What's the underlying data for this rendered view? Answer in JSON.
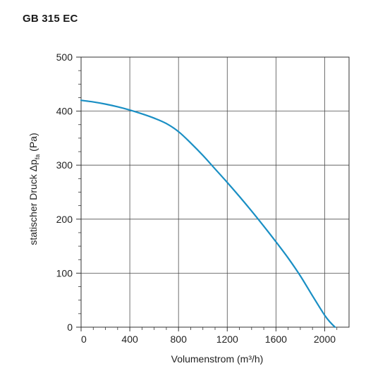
{
  "chart_data": {
    "type": "line",
    "title": "GB 315 EC",
    "xlabel": "Volumenstrom (m³/h)",
    "ylabel": {
      "text": "statischer Druck Δp",
      "subscript": "fa",
      "unit": " (Pa)"
    },
    "xlim": [
      0,
      2200
    ],
    "ylim": [
      0,
      500
    ],
    "xticks": [
      0,
      400,
      800,
      1200,
      1600,
      2000
    ],
    "yticks": [
      0,
      100,
      200,
      300,
      400,
      500
    ],
    "xgrid": [
      400,
      800,
      1200,
      1600,
      2000
    ],
    "ygrid": [
      100,
      200,
      300,
      400
    ],
    "grid": true,
    "series": [
      {
        "color": "#1a8fc4",
        "x": [
          0,
          100,
          200,
          300,
          400,
          500,
          600,
          700,
          800,
          900,
          1000,
          1100,
          1200,
          1300,
          1400,
          1500,
          1600,
          1700,
          1800,
          1900,
          2000,
          2050,
          2085
        ],
        "y": [
          420,
          417,
          413,
          408,
          402,
          395,
          387,
          377,
          362,
          341,
          318,
          293,
          268,
          242,
          215,
          187,
          158,
          128,
          95,
          58,
          22,
          8,
          0
        ]
      }
    ]
  }
}
